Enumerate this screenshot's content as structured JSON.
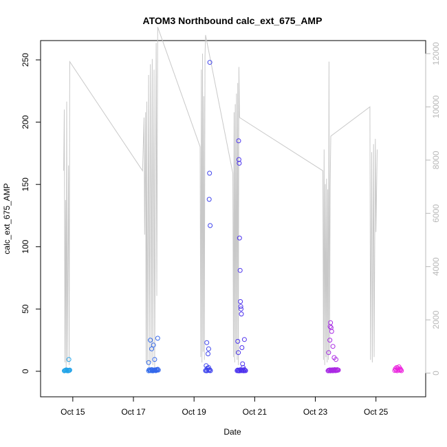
{
  "chart_data": {
    "type": "scatter",
    "title": "ATOM3 Northbound calc_ext_675_AMP",
    "xlabel": "Date",
    "ylabel": "calc_ext_675_AMP",
    "x_unit": "days in October",
    "xlim": [
      14.3,
      26.3
    ],
    "ylim": [
      -10,
      255
    ],
    "x_ticks": [
      15,
      17,
      19,
      21,
      23,
      25
    ],
    "x_tick_labels": [
      "Oct 15",
      "Oct 17",
      "Oct 19",
      "Oct 21",
      "Oct 23",
      "Oct 25"
    ],
    "y_ticks": [
      0,
      50,
      100,
      150,
      200,
      250
    ],
    "y_tick_labels": [
      "0",
      "50",
      "100",
      "150",
      "200",
      "250"
    ],
    "y2lim": [
      -400,
      12000
    ],
    "y2_ticks": [
      0,
      2000,
      4000,
      6000,
      8000,
      10000,
      12000
    ],
    "y2_tick_labels": [
      "0",
      "2000",
      "4000",
      "6000",
      "8000",
      "10000",
      "12000"
    ],
    "grid": false,
    "legend": "none",
    "colors": {
      "secondary_line": "#c8c8c8",
      "points_start": "#21a6e8",
      "points_mid": "#4433ee",
      "points_end": "#ee22dd",
      "axis": "#000000",
      "secondary_axis": "#b8b8b8"
    },
    "series": [
      {
        "axis": "left",
        "style": "open-circles",
        "points": [
          [
            14.72,
            0.4
          ],
          [
            14.74,
            0.6
          ],
          [
            14.76,
            0.8
          ],
          [
            14.78,
            1.1
          ],
          [
            14.8,
            0.5
          ],
          [
            14.82,
            0.9
          ],
          [
            14.84,
            0.3
          ],
          [
            14.86,
            0.7
          ],
          [
            14.88,
            0.6
          ],
          [
            14.9,
            1.0
          ],
          [
            14.87,
            9.5
          ],
          [
            17.5,
            0.4
          ],
          [
            17.52,
            1.2
          ],
          [
            17.54,
            0.6
          ],
          [
            17.56,
            0.9
          ],
          [
            17.58,
            0.5
          ],
          [
            17.6,
            1.4
          ],
          [
            17.62,
            0.7
          ],
          [
            17.64,
            0.3
          ],
          [
            17.66,
            1.0
          ],
          [
            17.68,
            0.6
          ],
          [
            17.7,
            1.1
          ],
          [
            17.72,
            0.8
          ],
          [
            17.74,
            0.5
          ],
          [
            17.76,
            1.3
          ],
          [
            17.78,
            0.9
          ],
          [
            17.8,
            1.6
          ],
          [
            17.82,
            1.0
          ],
          [
            17.5,
            7.0
          ],
          [
            17.56,
            25.0
          ],
          [
            17.6,
            18.0
          ],
          [
            17.66,
            21.0
          ],
          [
            17.7,
            9.5
          ],
          [
            17.8,
            26.5
          ],
          [
            19.38,
            0.5
          ],
          [
            19.4,
            1.0
          ],
          [
            19.42,
            0.4
          ],
          [
            19.44,
            2.5
          ],
          [
            19.46,
            0.8
          ],
          [
            19.48,
            3.0
          ],
          [
            19.5,
            0.6
          ],
          [
            19.52,
            1.2
          ],
          [
            19.54,
            0.5
          ],
          [
            19.4,
            4.5
          ],
          [
            19.42,
            23.0
          ],
          [
            19.46,
            14.0
          ],
          [
            19.48,
            18.0
          ],
          [
            19.5,
            138.0
          ],
          [
            19.51,
            159.0
          ],
          [
            19.53,
            117.0
          ],
          [
            19.52,
            248.0
          ],
          [
            20.42,
            0.5
          ],
          [
            20.44,
            1.0
          ],
          [
            20.46,
            0.4
          ],
          [
            20.48,
            0.8
          ],
          [
            20.5,
            0.3
          ],
          [
            20.52,
            1.2
          ],
          [
            20.54,
            0.6
          ],
          [
            20.56,
            0.9
          ],
          [
            20.58,
            0.5
          ],
          [
            20.6,
            1.1
          ],
          [
            20.62,
            0.7
          ],
          [
            20.64,
            0.4
          ],
          [
            20.66,
            1.3
          ],
          [
            20.68,
            0.8
          ],
          [
            20.7,
            0.5
          ],
          [
            20.44,
            24.0
          ],
          [
            20.46,
            15.0
          ],
          [
            20.47,
            185.0
          ],
          [
            20.48,
            170.0
          ],
          [
            20.49,
            167.0
          ],
          [
            20.5,
            107.0
          ],
          [
            20.52,
            81.0
          ],
          [
            20.53,
            56.0
          ],
          [
            20.54,
            52.0
          ],
          [
            20.55,
            50.0
          ],
          [
            20.56,
            46.0
          ],
          [
            20.58,
            19.0
          ],
          [
            20.6,
            6.0
          ],
          [
            20.62,
            3.0
          ],
          [
            20.66,
            25.5
          ],
          [
            23.42,
            0.4
          ],
          [
            23.44,
            0.8
          ],
          [
            23.46,
            0.5
          ],
          [
            23.48,
            1.1
          ],
          [
            23.5,
            0.3
          ],
          [
            23.52,
            0.9
          ],
          [
            23.54,
            0.6
          ],
          [
            23.56,
            1.2
          ],
          [
            23.58,
            0.4
          ],
          [
            23.6,
            1.0
          ],
          [
            23.62,
            0.7
          ],
          [
            23.64,
            1.4
          ],
          [
            23.66,
            0.5
          ],
          [
            23.68,
            1.0
          ],
          [
            23.7,
            0.6
          ],
          [
            23.72,
            1.3
          ],
          [
            23.74,
            0.8
          ],
          [
            23.76,
            1.0
          ],
          [
            23.44,
            15.0
          ],
          [
            23.48,
            25.0
          ],
          [
            23.49,
            36.0
          ],
          [
            23.5,
            39.0
          ],
          [
            23.52,
            35.0
          ],
          [
            23.54,
            32.0
          ],
          [
            23.58,
            20.0
          ],
          [
            23.62,
            11.0
          ],
          [
            23.68,
            9.5
          ],
          [
            25.62,
            0.6
          ],
          [
            25.64,
            2.0
          ],
          [
            25.66,
            1.0
          ],
          [
            25.68,
            3.0
          ],
          [
            25.7,
            0.5
          ],
          [
            25.72,
            2.5
          ],
          [
            25.74,
            1.5
          ],
          [
            25.76,
            3.5
          ],
          [
            25.78,
            0.8
          ],
          [
            25.8,
            2.0
          ],
          [
            25.82,
            1.2
          ],
          [
            25.84,
            0.5
          ]
        ]
      },
      {
        "axis": "right",
        "style": "line",
        "points": [
          [
            14.7,
            7600
          ],
          [
            14.72,
            9900
          ],
          [
            14.74,
            400
          ],
          [
            14.76,
            6500
          ],
          [
            14.78,
            200
          ],
          [
            14.8,
            10200
          ],
          [
            14.82,
            400
          ],
          [
            14.86,
            7800
          ],
          [
            14.88,
            300
          ],
          [
            14.9,
            11700
          ],
          [
            17.3,
            7600
          ],
          [
            17.35,
            9600
          ],
          [
            17.37,
            5200
          ],
          [
            17.4,
            9800
          ],
          [
            17.42,
            400
          ],
          [
            17.44,
            10200
          ],
          [
            17.46,
            300
          ],
          [
            17.5,
            11200
          ],
          [
            17.52,
            200
          ],
          [
            17.56,
            11600
          ],
          [
            17.58,
            400
          ],
          [
            17.62,
            11800
          ],
          [
            17.64,
            300
          ],
          [
            17.68,
            11400
          ],
          [
            17.7,
            200
          ],
          [
            17.75,
            12400
          ],
          [
            17.77,
            2900
          ],
          [
            17.8,
            13000
          ],
          [
            19.2,
            8500
          ],
          [
            19.22,
            600
          ],
          [
            19.24,
            11400
          ],
          [
            19.26,
            400
          ],
          [
            19.28,
            12000
          ],
          [
            19.3,
            800
          ],
          [
            19.32,
            10400
          ],
          [
            19.34,
            500
          ],
          [
            19.36,
            11900
          ],
          [
            19.38,
            12700
          ],
          [
            20.28,
            7500
          ],
          [
            20.3,
            600
          ],
          [
            20.32,
            9800
          ],
          [
            20.34,
            400
          ],
          [
            20.36,
            10100
          ],
          [
            20.38,
            700
          ],
          [
            20.4,
            10500
          ],
          [
            20.42,
            500
          ],
          [
            20.44,
            10900
          ],
          [
            20.46,
            300
          ],
          [
            20.48,
            11500
          ],
          [
            20.5,
            9600
          ],
          [
            23.25,
            7600
          ],
          [
            23.27,
            500
          ],
          [
            23.29,
            8400
          ],
          [
            23.31,
            300
          ],
          [
            23.33,
            7100
          ],
          [
            23.35,
            600
          ],
          [
            23.37,
            7300
          ],
          [
            23.39,
            400
          ],
          [
            23.41,
            6900
          ],
          [
            23.43,
            500
          ],
          [
            23.45,
            11700
          ],
          [
            23.47,
            700
          ],
          [
            23.49,
            7000
          ],
          [
            23.51,
            8900
          ],
          [
            24.8,
            10000
          ],
          [
            24.82,
            500
          ],
          [
            24.86,
            8300
          ],
          [
            24.88,
            400
          ],
          [
            24.92,
            8600
          ],
          [
            24.94,
            600
          ],
          [
            24.98,
            8800
          ],
          [
            25.0,
            5300
          ],
          [
            25.04,
            8400
          ]
        ]
      }
    ]
  }
}
